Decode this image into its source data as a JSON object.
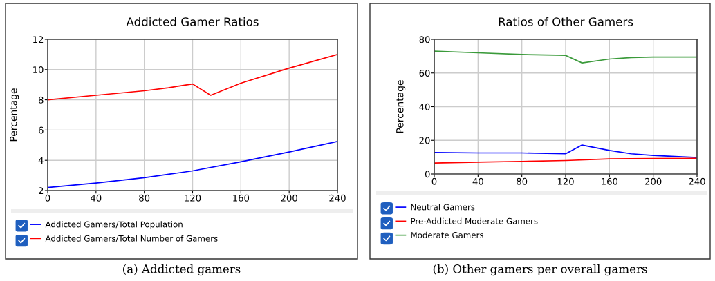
{
  "chart_data": [
    {
      "type": "line",
      "title": "Addicted Gamer Ratios",
      "ylabel": "Percentage",
      "annotations": [
        "(a) Addicted gamers"
      ],
      "x": [
        0,
        40,
        80,
        100,
        120,
        135,
        160,
        200,
        240
      ],
      "series": [
        {
          "name": "Addicted Gamers/Total Population",
          "color": "#0000ff",
          "x": [
            0,
            40,
            80,
            120,
            160,
            200,
            240
          ],
          "values": [
            2.2,
            2.5,
            2.85,
            3.3,
            3.9,
            4.55,
            5.25
          ]
        },
        {
          "name": "Addicted Gamers/Total Number of Gamers",
          "color": "#ff0000",
          "values": [
            8.0,
            8.3,
            8.6,
            8.8,
            9.05,
            8.3,
            9.1,
            10.1,
            11.0
          ]
        }
      ],
      "xlim": [
        0,
        240
      ],
      "xticks": [
        0,
        40,
        80,
        120,
        160,
        200,
        240
      ],
      "ylim": [
        2,
        12
      ],
      "yticks": [
        2,
        4,
        6,
        8,
        10,
        12
      ],
      "grid": true,
      "legend": "bottom"
    },
    {
      "type": "line",
      "title": "Ratios of Other Gamers",
      "ylabel": "Percentage",
      "annotations": [
        "(b) Other gamers per overall gamers"
      ],
      "x": [
        0,
        40,
        80,
        120,
        135,
        160,
        180,
        200,
        240
      ],
      "series": [
        {
          "name": "Neutral Gamers",
          "color": "#0000ff",
          "values": [
            12.8,
            12.5,
            12.5,
            12.0,
            17.2,
            14.0,
            12.0,
            11.0,
            9.8
          ]
        },
        {
          "name": "Pre-Addicted Moderate Gamers",
          "color": "#ff0000",
          "x": [
            0,
            40,
            80,
            120,
            160,
            200,
            240
          ],
          "values": [
            6.5,
            7.0,
            7.5,
            8.0,
            9.0,
            9.2,
            9.3
          ]
        },
        {
          "name": "Moderate Gamers",
          "color": "#3a9a3a",
          "values": [
            73,
            72,
            71,
            70.5,
            66,
            68.3,
            69.2,
            69.5,
            69.5
          ]
        }
      ],
      "xlim": [
        0,
        240
      ],
      "xticks": [
        0,
        40,
        80,
        120,
        160,
        200,
        240
      ],
      "ylim": [
        0,
        80
      ],
      "yticks": [
        0,
        20,
        40,
        60,
        80
      ],
      "grid": true,
      "legend": "bottom"
    }
  ]
}
